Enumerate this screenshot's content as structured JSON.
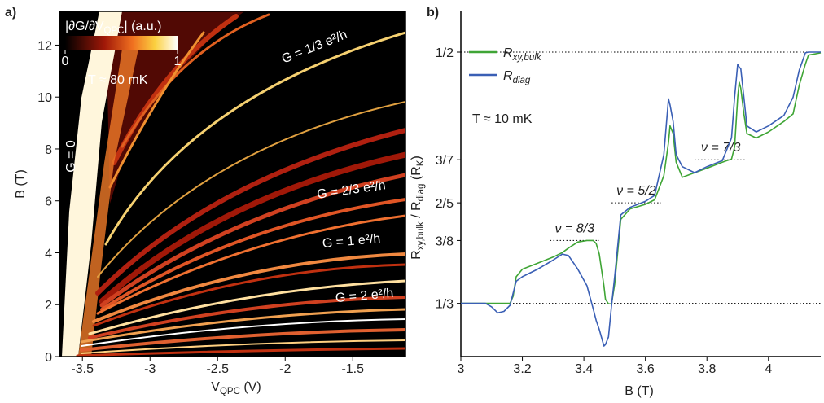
{
  "chart_data": [
    {
      "type": "heatmap",
      "panel_label": "a)",
      "xlabel": [
        {
          "text": "V"
        },
        {
          "text": "QPC",
          "sub": true
        },
        {
          "text": " (V)"
        }
      ],
      "ylabel": [
        {
          "text": "B"
        },
        {
          "text": " (T)"
        }
      ],
      "xlim": [
        -3.67,
        -1.11
      ],
      "ylim": [
        0,
        13.3
      ],
      "xticks": [
        -3.5,
        -3,
        -2.5,
        -2,
        -1.5
      ],
      "yticks": [
        0,
        2,
        4,
        6,
        8,
        10,
        12
      ],
      "colorbar": {
        "label": [
          {
            "text": "|∂G/∂V"
          },
          {
            "text": "QPC",
            "sub": true
          },
          {
            "text": "| (a.u.)"
          }
        ],
        "clim": [
          0,
          1
        ],
        "ticks": [
          0,
          1
        ]
      },
      "temperature": "T ≈ 80 mK",
      "annotations": [
        {
          "text": "G = 1/3 e²/h"
        },
        {
          "text": "G = 2/3 e²/h"
        },
        {
          "text": "G = 1 e²/h"
        },
        {
          "text": "G = 2 e²/h"
        },
        {
          "text": "G = 0"
        }
      ]
    },
    {
      "type": "line",
      "panel_label": "b)",
      "xlabel": [
        {
          "text": "B"
        },
        {
          "text": " (T)"
        }
      ],
      "ylabel": [
        {
          "text": "R"
        },
        {
          "text": "xy,bulk",
          "sub": true
        },
        {
          "text": " / "
        },
        {
          "text": "R"
        },
        {
          "text": "diag",
          "sub": true
        },
        {
          "text": " (R"
        },
        {
          "text": "K",
          "sub": true
        },
        {
          "text": ")"
        }
      ],
      "xlim": [
        3,
        4.17
      ],
      "ylim": [
        0.298,
        0.527
      ],
      "xticks": [
        3,
        3.2,
        3.4,
        3.6,
        3.8,
        4
      ],
      "yticks": [
        {
          "value": 0.3333,
          "label": "1/3"
        },
        {
          "value": 0.375,
          "label": "3/8"
        },
        {
          "value": 0.4,
          "label": "2/5"
        },
        {
          "value": 0.4286,
          "label": "3/7"
        },
        {
          "value": 0.5,
          "label": "1/2"
        }
      ],
      "legend": "upper left",
      "temperature": "T ≈ 10 mK",
      "hlines": [
        {
          "y": 0.3333,
          "xrange": [
            3,
            4.17
          ]
        },
        {
          "y": 0.5,
          "xrange": [
            3,
            4.17
          ]
        },
        {
          "y": 0.375,
          "xrange": [
            3.29,
            3.45
          ],
          "label": "ν = 8/3"
        },
        {
          "y": 0.4,
          "xrange": [
            3.49,
            3.65
          ],
          "label": "ν = 5/2"
        },
        {
          "y": 0.4286,
          "xrange": [
            3.76,
            3.93
          ],
          "label": "ν = 7/3"
        }
      ],
      "x": [
        3.0,
        3.08,
        3.1,
        3.12,
        3.14,
        3.16,
        3.17,
        3.18,
        3.2,
        3.25,
        3.3,
        3.33,
        3.35,
        3.38,
        3.41,
        3.43,
        3.44,
        3.45,
        3.465,
        3.47,
        3.48,
        3.49,
        3.5,
        3.52,
        3.55,
        3.6,
        3.63,
        3.66,
        3.675,
        3.68,
        3.69,
        3.7,
        3.72,
        3.76,
        3.8,
        3.85,
        3.88,
        3.89,
        3.9,
        3.905,
        3.91,
        3.92,
        3.93,
        3.96,
        4.0,
        4.05,
        4.08,
        4.1,
        4.12,
        4.13,
        4.17
      ],
      "series": [
        {
          "name": [
            {
              "text": "R"
            },
            {
              "text": "xy,bulk",
              "sub": true
            }
          ],
          "color": "#3fa535",
          "values": [
            0.3333,
            0.3333,
            0.3333,
            0.3333,
            0.3333,
            0.3333,
            0.338,
            0.351,
            0.356,
            0.36,
            0.364,
            0.367,
            0.37,
            0.374,
            0.375,
            0.375,
            0.373,
            0.366,
            0.345,
            0.336,
            0.333,
            0.333,
            0.346,
            0.389,
            0.396,
            0.399,
            0.402,
            0.418,
            0.44,
            0.451,
            0.446,
            0.427,
            0.417,
            0.42,
            0.423,
            0.427,
            0.429,
            0.437,
            0.47,
            0.48,
            0.476,
            0.459,
            0.446,
            0.443,
            0.447,
            0.454,
            0.459,
            0.478,
            0.492,
            0.498,
            0.4995
          ]
        },
        {
          "name": [
            {
              "text": "R"
            },
            {
              "text": "diag",
              "sub": true
            }
          ],
          "color": "#3a5fb5",
          "values": [
            0.3333,
            0.3333,
            0.331,
            0.327,
            0.328,
            0.332,
            0.34,
            0.348,
            0.351,
            0.356,
            0.362,
            0.366,
            0.365,
            0.356,
            0.345,
            0.33,
            0.322,
            0.316,
            0.305,
            0.306,
            0.311,
            0.332,
            0.351,
            0.392,
            0.397,
            0.401,
            0.405,
            0.432,
            0.469,
            0.465,
            0.454,
            0.432,
            0.424,
            0.42,
            0.424,
            0.428,
            0.443,
            0.47,
            0.492,
            0.49,
            0.489,
            0.47,
            0.451,
            0.447,
            0.451,
            0.458,
            0.47,
            0.488,
            0.4995,
            0.5,
            0.5
          ]
        }
      ]
    }
  ]
}
